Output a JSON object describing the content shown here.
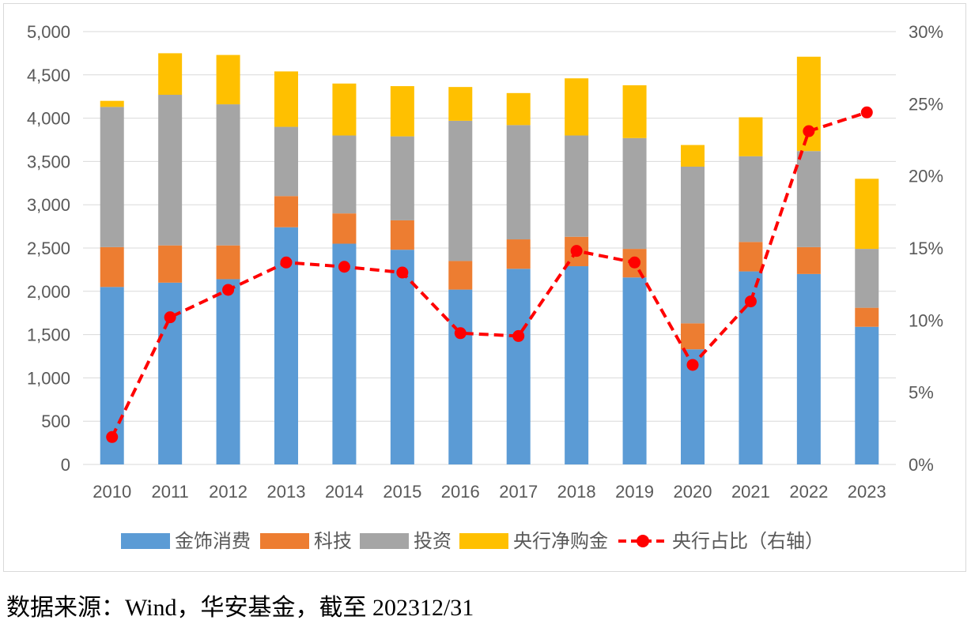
{
  "source_note": "数据来源：Wind，华安基金，截至 202312/31",
  "colors": {
    "jewelry": "#5b9bd5",
    "tech": "#ed7d31",
    "investment": "#a5a5a5",
    "central_bank": "#ffc000",
    "share_line": "#ff0000",
    "grid": "#d9d9d9",
    "axis_text": "#595959"
  },
  "chart_data": {
    "type": "bar",
    "stacked": true,
    "title": "",
    "categories": [
      "2010",
      "2011",
      "2012",
      "2013",
      "2014",
      "2015",
      "2016",
      "2017",
      "2018",
      "2019",
      "2020",
      "2021",
      "2022",
      "2023"
    ],
    "series": [
      {
        "name": "金饰消费",
        "values": [
          2050,
          2100,
          2140,
          2740,
          2550,
          2480,
          2020,
          2260,
          2290,
          2160,
          1330,
          2230,
          2200,
          1590
        ]
      },
      {
        "name": "科技",
        "values": [
          460,
          430,
          390,
          360,
          350,
          340,
          330,
          340,
          340,
          330,
          300,
          340,
          310,
          220
        ]
      },
      {
        "name": "投资",
        "values": [
          1620,
          1740,
          1630,
          800,
          900,
          970,
          1620,
          1320,
          1170,
          1280,
          1810,
          990,
          1110,
          680
        ]
      },
      {
        "name": "央行净购金",
        "values": [
          70,
          480,
          570,
          640,
          600,
          580,
          390,
          370,
          660,
          610,
          250,
          450,
          1090,
          810
        ]
      }
    ],
    "line_series": {
      "name": "央行占比（右轴）",
      "axis": "right",
      "values": [
        1.9,
        10.2,
        12.1,
        14.0,
        13.7,
        13.3,
        9.1,
        8.9,
        14.8,
        14.0,
        6.9,
        11.3,
        23.1,
        24.4
      ]
    },
    "y_left": {
      "min": 0,
      "max": 5000,
      "ticks": [
        "0",
        "500",
        "1,000",
        "1,500",
        "2,000",
        "2,500",
        "3,000",
        "3,500",
        "4,000",
        "4,500",
        "5,000"
      ]
    },
    "y_right": {
      "min": 0,
      "max": 30,
      "ticks": [
        "0%",
        "5%",
        "10%",
        "15%",
        "20%",
        "25%",
        "30%"
      ]
    },
    "grid": true,
    "legend_position": "bottom"
  }
}
